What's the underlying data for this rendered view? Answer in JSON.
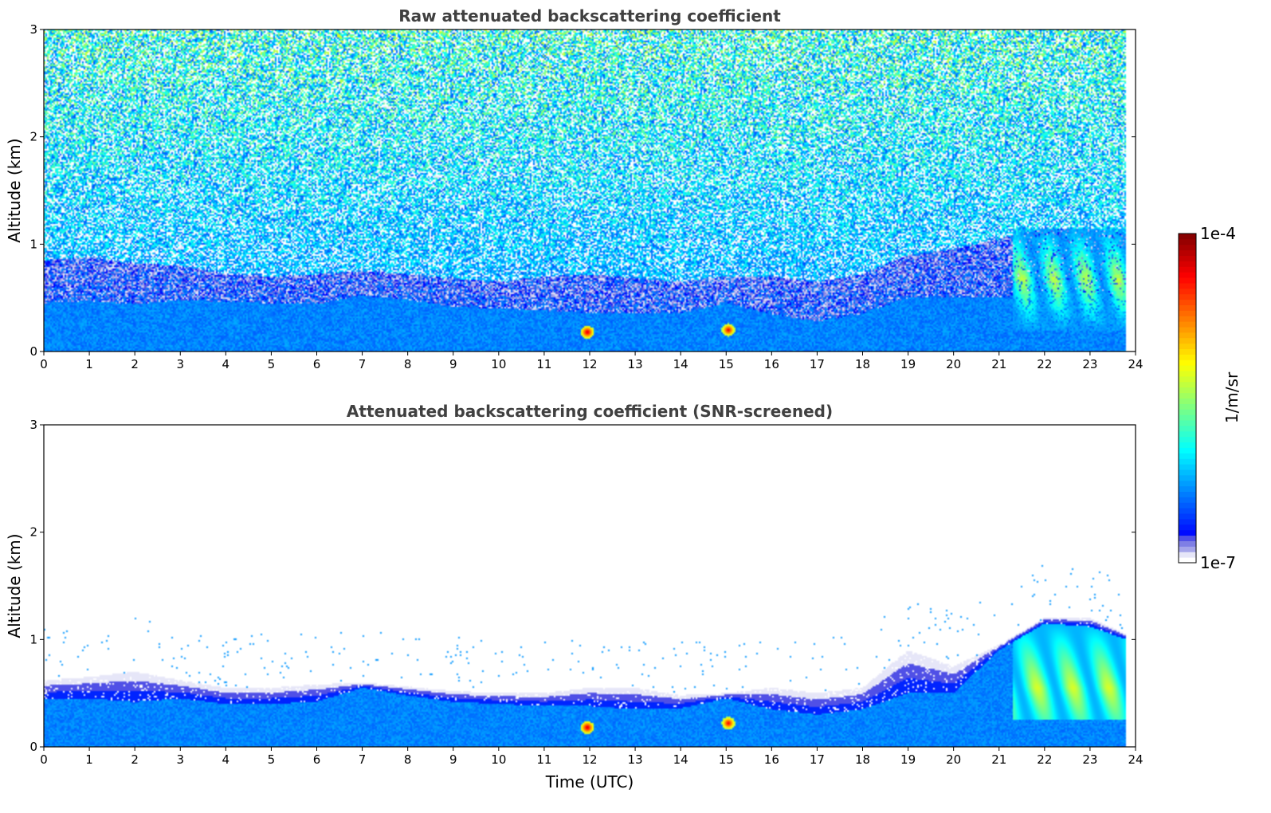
{
  "chart_data": [
    {
      "type": "heatmap",
      "title": "Raw attenuated backscattering coefficient",
      "xlabel": "",
      "ylabel": "Altitude (km)",
      "xlim": [
        0,
        24
      ],
      "ylim": [
        0,
        3
      ],
      "xticks": [
        "0",
        "1",
        "2",
        "3",
        "4",
        "5",
        "6",
        "7",
        "8",
        "9",
        "10",
        "11",
        "12",
        "13",
        "14",
        "15",
        "16",
        "17",
        "18",
        "19",
        "20",
        "21",
        "22",
        "23",
        "24"
      ],
      "yticks": [
        "0",
        "1",
        "2",
        "3"
      ],
      "data_time_end": 23.8,
      "boundary_layer_top_km": [
        [
          0,
          0.45
        ],
        [
          1,
          0.47
        ],
        [
          2,
          0.44
        ],
        [
          3,
          0.48
        ],
        [
          4,
          0.46
        ],
        [
          5,
          0.45
        ],
        [
          6,
          0.44
        ],
        [
          7,
          0.52
        ],
        [
          8,
          0.48
        ],
        [
          9,
          0.42
        ],
        [
          10,
          0.4
        ],
        [
          11,
          0.38
        ],
        [
          12,
          0.36
        ],
        [
          13,
          0.35
        ],
        [
          14,
          0.36
        ],
        [
          15,
          0.45
        ],
        [
          16,
          0.35
        ],
        [
          17,
          0.28
        ],
        [
          18,
          0.35
        ],
        [
          19,
          0.5
        ],
        [
          20,
          0.5
        ],
        [
          21,
          0.5
        ],
        [
          22,
          0.55
        ],
        [
          23,
          0.55
        ],
        [
          23.8,
          0.5
        ]
      ],
      "residual_layer_top_km": [
        [
          0,
          0.85
        ],
        [
          1,
          0.88
        ],
        [
          2,
          0.82
        ],
        [
          3,
          0.8
        ],
        [
          4,
          0.72
        ],
        [
          5,
          0.7
        ],
        [
          6,
          0.72
        ],
        [
          7,
          0.75
        ],
        [
          8,
          0.72
        ],
        [
          9,
          0.68
        ],
        [
          10,
          0.65
        ],
        [
          11,
          0.7
        ],
        [
          12,
          0.72
        ],
        [
          13,
          0.68
        ],
        [
          14,
          0.65
        ],
        [
          15,
          0.7
        ],
        [
          16,
          0.7
        ],
        [
          17,
          0.65
        ],
        [
          18,
          0.72
        ],
        [
          19,
          0.9
        ],
        [
          20,
          0.95
        ],
        [
          21,
          1.05
        ],
        [
          22,
          1.15
        ],
        [
          23,
          1.15
        ],
        [
          23.8,
          1.1
        ]
      ],
      "elevated_layers": [
        {
          "t_start": 21.3,
          "t_end": 23.8,
          "base_km": 0.2,
          "top_km": 1.15,
          "peak_log10": -5.4
        }
      ],
      "hotspots": [
        {
          "t": 11.95,
          "alt_km": 0.18,
          "log10": -4.2
        },
        {
          "t": 15.05,
          "alt_km": 0.2,
          "log10": -4.3
        }
      ]
    },
    {
      "type": "heatmap",
      "title": "Attenuated backscattering coefficient (SNR-screened)",
      "xlabel": "Time (UTC)",
      "ylabel": "Altitude (km)",
      "xlim": [
        0,
        24
      ],
      "ylim": [
        0,
        3
      ],
      "xticks": [
        "0",
        "1",
        "2",
        "3",
        "4",
        "5",
        "6",
        "7",
        "8",
        "9",
        "10",
        "11",
        "12",
        "13",
        "14",
        "15",
        "16",
        "17",
        "18",
        "19",
        "20",
        "21",
        "22",
        "23",
        "24"
      ],
      "yticks": [
        "0",
        "1",
        "2",
        "3"
      ],
      "data_time_end": 23.8,
      "screened_top_km": [
        [
          0,
          0.62
        ],
        [
          1,
          0.65
        ],
        [
          2,
          0.7
        ],
        [
          3,
          0.62
        ],
        [
          4,
          0.55
        ],
        [
          5,
          0.55
        ],
        [
          6,
          0.58
        ],
        [
          7,
          0.6
        ],
        [
          8,
          0.56
        ],
        [
          9,
          0.52
        ],
        [
          10,
          0.5
        ],
        [
          11,
          0.5
        ],
        [
          12,
          0.55
        ],
        [
          13,
          0.55
        ],
        [
          14,
          0.48
        ],
        [
          15,
          0.5
        ],
        [
          16,
          0.55
        ],
        [
          17,
          0.5
        ],
        [
          18,
          0.55
        ],
        [
          19,
          0.9
        ],
        [
          20,
          0.75
        ],
        [
          21,
          0.95
        ],
        [
          22,
          1.2
        ],
        [
          23,
          1.2
        ],
        [
          23.8,
          1.05
        ]
      ],
      "dense_layer_top_km": [
        [
          0,
          0.45
        ],
        [
          1,
          0.45
        ],
        [
          2,
          0.42
        ],
        [
          3,
          0.45
        ],
        [
          4,
          0.4
        ],
        [
          5,
          0.4
        ],
        [
          6,
          0.42
        ],
        [
          7,
          0.55
        ],
        [
          8,
          0.48
        ],
        [
          9,
          0.42
        ],
        [
          10,
          0.4
        ],
        [
          11,
          0.38
        ],
        [
          12,
          0.38
        ],
        [
          13,
          0.35
        ],
        [
          14,
          0.36
        ],
        [
          15,
          0.45
        ],
        [
          16,
          0.35
        ],
        [
          17,
          0.3
        ],
        [
          18,
          0.35
        ],
        [
          19,
          0.5
        ],
        [
          20,
          0.5
        ],
        [
          21,
          0.9
        ],
        [
          22,
          1.15
        ],
        [
          23,
          1.12
        ],
        [
          23.8,
          1.0
        ]
      ],
      "hotspots": [
        {
          "t": 11.95,
          "alt_km": 0.18,
          "log10": -4.2
        },
        {
          "t": 15.05,
          "alt_km": 0.22,
          "log10": -4.3
        }
      ]
    }
  ],
  "colorbar": {
    "label": "1/m/sr",
    "max_label": "1e-4",
    "min_label": "1e-7",
    "min_log10": -7,
    "max_log10": -4,
    "colormap": "jet-with-white-low"
  }
}
